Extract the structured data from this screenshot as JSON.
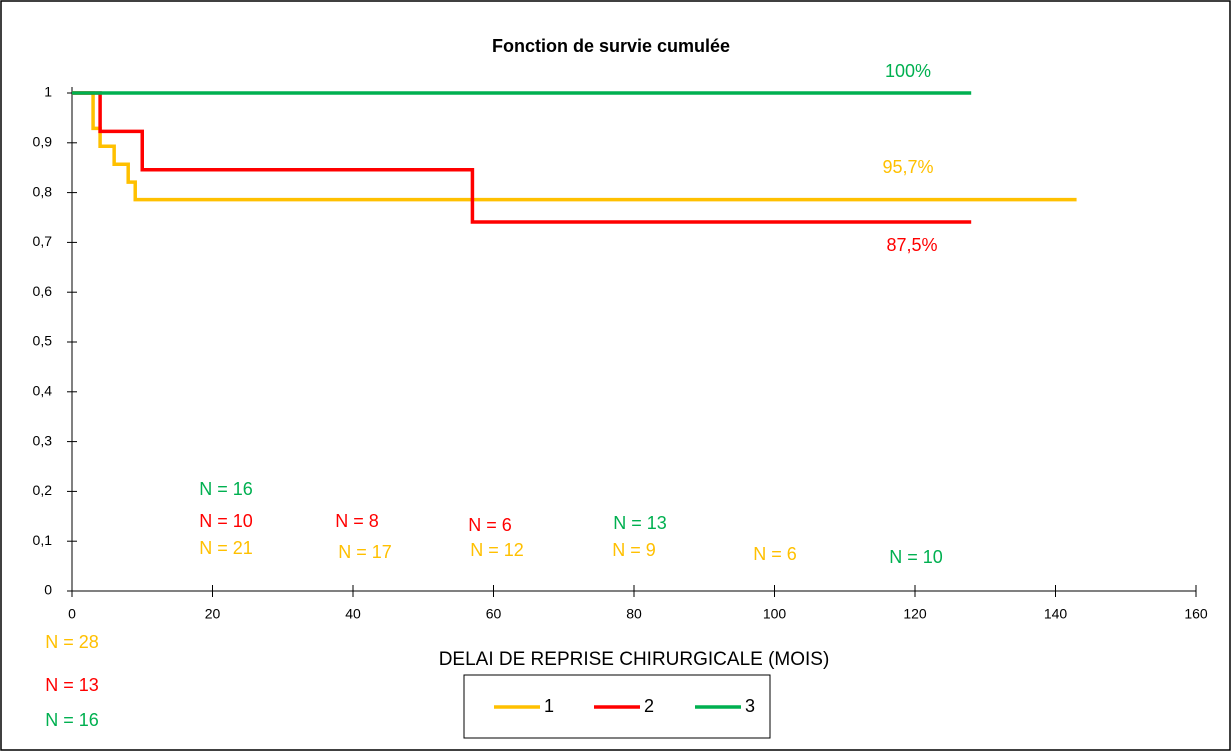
{
  "chart_data": {
    "type": "step-line",
    "title": "Fonction de survie cumulée",
    "xlabel": "DELAI DE REPRISE CHIRURGICALE (MOIS)",
    "xlim": [
      0,
      160
    ],
    "xticks": [
      0,
      20,
      40,
      60,
      80,
      100,
      120,
      140,
      160
    ],
    "ylim": [
      0,
      1
    ],
    "yticks": [
      0,
      {
        "value": 0.1,
        "label": "0,1"
      },
      {
        "value": 0.2,
        "label": "0,2"
      },
      {
        "value": 0.3,
        "label": "0,3"
      },
      {
        "value": 0.4,
        "label": "0,4"
      },
      {
        "value": 0.5,
        "label": "0,5"
      },
      {
        "value": 0.6,
        "label": "0,6"
      },
      {
        "value": 0.7,
        "label": "0,7"
      },
      {
        "value": 0.8,
        "label": "0,8"
      },
      {
        "value": 0.9,
        "label": "0,9"
      },
      1
    ],
    "grid": false,
    "legend": "bottom",
    "series": [
      {
        "name": "1",
        "color": "#FFC000",
        "x": [
          0,
          3,
          4,
          6,
          8,
          9,
          143
        ],
        "values": [
          1,
          0.929,
          0.893,
          0.857,
          0.821,
          0.786,
          0.786
        ]
      },
      {
        "name": "2",
        "color": "#FF0000",
        "x": [
          0,
          4,
          10,
          57,
          128
        ],
        "values": [
          1,
          0.923,
          0.846,
          0.741,
          0.741
        ]
      },
      {
        "name": "3",
        "color": "#00B050",
        "x": [
          0,
          128
        ],
        "values": [
          1,
          1
        ]
      }
    ],
    "annotations": [
      {
        "text": "100%",
        "color": "#00B050"
      },
      {
        "text": "95,7%",
        "color": "#FFC000"
      },
      {
        "text": "87,5%",
        "color": "#FF0000"
      },
      {
        "text": "N = 16",
        "color": "#00B050"
      },
      {
        "text": "N = 10",
        "color": "#FF0000"
      },
      {
        "text": "N = 21",
        "color": "#FFC000"
      },
      {
        "text": "N = 8",
        "color": "#FF0000"
      },
      {
        "text": "N = 17",
        "color": "#FFC000"
      },
      {
        "text": "N = 6",
        "color": "#FF0000"
      },
      {
        "text": "N = 12",
        "color": "#FFC000"
      },
      {
        "text": "N = 13",
        "color": "#00B050"
      },
      {
        "text": "N = 9",
        "color": "#FFC000"
      },
      {
        "text": "N = 6",
        "color": "#FFC000"
      },
      {
        "text": "N = 10",
        "color": "#00B050"
      },
      {
        "text": "N = 28",
        "color": "#FFC000"
      },
      {
        "text": "N = 13",
        "color": "#FF0000"
      },
      {
        "text": "N = 16",
        "color": "#00B050"
      }
    ]
  }
}
